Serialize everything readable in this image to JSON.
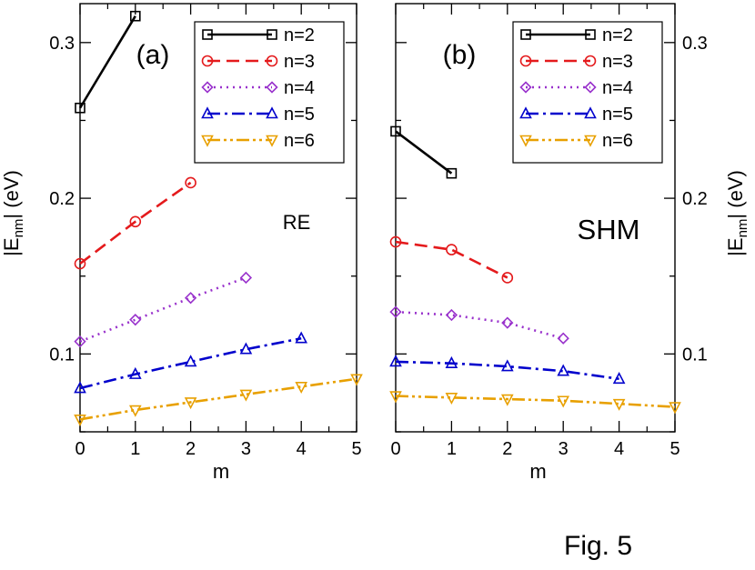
{
  "caption": "Fig. 5",
  "chart_data": [
    {
      "type": "line",
      "panel_label": "(a)",
      "annotation": "RE",
      "xlabel": "m",
      "ylabel_main": "|E",
      "ylabel_sub": "nm",
      "ylabel_tail": "| (eV)",
      "xlim": [
        0,
        5
      ],
      "ylim": [
        0.05,
        0.325
      ],
      "x_ticks": [
        0,
        1,
        2,
        3,
        4,
        5
      ],
      "y_ticks": [
        0.1,
        0.2,
        0.3
      ],
      "y_tick_labels": [
        "0.1",
        "0.2",
        "0.3"
      ],
      "series": [
        {
          "name": "n=2",
          "x": [
            0,
            1
          ],
          "y": [
            0.258,
            0.317
          ]
        },
        {
          "name": "n=3",
          "x": [
            0,
            1,
            2
          ],
          "y": [
            0.158,
            0.185,
            0.21
          ]
        },
        {
          "name": "n=4",
          "x": [
            0,
            1,
            2,
            3
          ],
          "y": [
            0.108,
            0.122,
            0.136,
            0.149
          ]
        },
        {
          "name": "n=5",
          "x": [
            0,
            1,
            2,
            3,
            4
          ],
          "y": [
            0.078,
            0.087,
            0.095,
            0.103,
            0.11
          ]
        },
        {
          "name": "n=6",
          "x": [
            0,
            1,
            2,
            3,
            4,
            5
          ],
          "y": [
            0.058,
            0.064,
            0.069,
            0.074,
            0.079,
            0.084
          ]
        }
      ]
    },
    {
      "type": "line",
      "panel_label": "(b)",
      "annotation": "SHM",
      "xlabel": "m",
      "ylabel_main": "|E",
      "ylabel_sub": "nm",
      "ylabel_tail": "| (eV)",
      "xlim": [
        0,
        5
      ],
      "ylim": [
        0.05,
        0.325
      ],
      "x_ticks": [
        0,
        1,
        2,
        3,
        4,
        5
      ],
      "y_ticks": [
        0.1,
        0.2,
        0.3
      ],
      "y_tick_labels": [
        "0.1",
        "0.2",
        "0.3"
      ],
      "series": [
        {
          "name": "n=2",
          "x": [
            0,
            1
          ],
          "y": [
            0.243,
            0.216
          ]
        },
        {
          "name": "n=3",
          "x": [
            0,
            1,
            2
          ],
          "y": [
            0.172,
            0.167,
            0.149
          ]
        },
        {
          "name": "n=4",
          "x": [
            0,
            1,
            2,
            3
          ],
          "y": [
            0.127,
            0.125,
            0.12,
            0.11
          ]
        },
        {
          "name": "n=5",
          "x": [
            0,
            1,
            2,
            3,
            4
          ],
          "y": [
            0.095,
            0.094,
            0.092,
            0.089,
            0.084
          ]
        },
        {
          "name": "n=6",
          "x": [
            0,
            1,
            2,
            3,
            4,
            5
          ],
          "y": [
            0.073,
            0.072,
            0.071,
            0.07,
            0.068,
            0.066
          ]
        }
      ]
    }
  ],
  "series_styles": [
    {
      "color": "#000000",
      "marker": "square",
      "dash": "none"
    },
    {
      "color": "#e41a1c",
      "marker": "circle",
      "dash": "14,7"
    },
    {
      "color": "#9932cc",
      "marker": "diamond",
      "dash": "2,5"
    },
    {
      "color": "#0000cc",
      "marker": "triangle-up",
      "dash": "14,5,3,5"
    },
    {
      "color": "#e8a000",
      "marker": "triangle-down",
      "dash": "14,4,3,4,3,4"
    }
  ]
}
